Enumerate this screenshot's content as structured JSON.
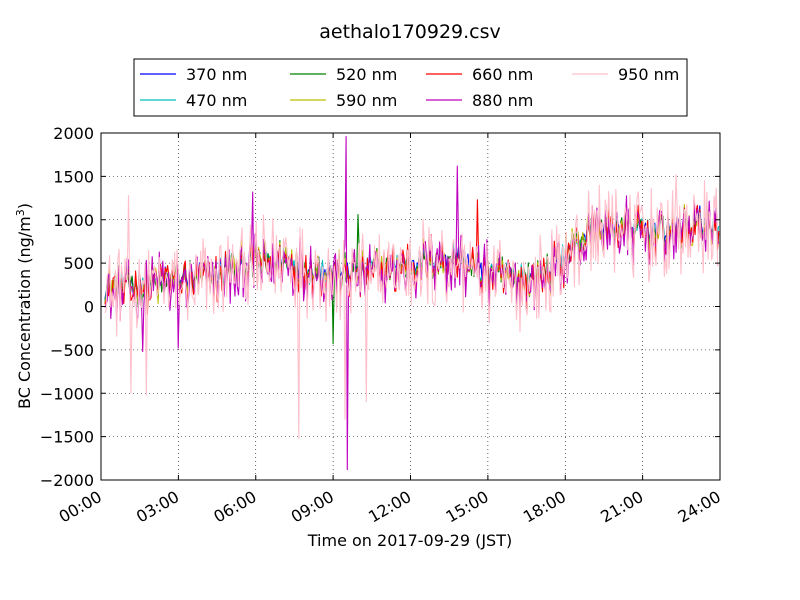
{
  "chart_data": {
    "type": "line",
    "title": "aethalo170929.csv",
    "xlabel": "Time on 2017-09-29 (JST)",
    "ylabel_main": "BC Concentration (ng/m",
    "ylabel_sup": "3",
    "ylabel_tail": ")",
    "xlim_hours": [
      0,
      24
    ],
    "ylim": [
      -2000,
      2000
    ],
    "x_ticks": [
      {
        "hour": 0,
        "label": "00:00"
      },
      {
        "hour": 3,
        "label": "03:00"
      },
      {
        "hour": 6,
        "label": "06:00"
      },
      {
        "hour": 9,
        "label": "09:00"
      },
      {
        "hour": 12,
        "label": "12:00"
      },
      {
        "hour": 15,
        "label": "15:00"
      },
      {
        "hour": 18,
        "label": "18:00"
      },
      {
        "hour": 21,
        "label": "21:00"
      },
      {
        "hour": 24,
        "label": "24:00"
      }
    ],
    "y_ticks": [
      {
        "value": 2000,
        "label": "2000"
      },
      {
        "value": 1500,
        "label": "1500"
      },
      {
        "value": 1000,
        "label": "1000"
      },
      {
        "value": 500,
        "label": "500"
      },
      {
        "value": 0,
        "label": "0"
      },
      {
        "value": -500,
        "label": "−500"
      },
      {
        "value": -1000,
        "label": "−1000"
      },
      {
        "value": -1500,
        "label": "−1500"
      },
      {
        "value": -2000,
        "label": "−2000"
      }
    ],
    "grid": true,
    "legend_position": "top",
    "series": [
      {
        "name": "370 nm",
        "color": "#0000ff",
        "x": [
          0,
          1,
          2,
          3,
          4,
          5,
          6,
          7,
          8,
          9,
          10,
          11,
          12,
          13,
          14,
          15,
          16,
          17,
          18,
          19,
          20,
          21,
          22,
          23,
          24
        ],
        "y": [
          200,
          250,
          300,
          320,
          330,
          450,
          520,
          560,
          480,
          380,
          420,
          450,
          520,
          560,
          540,
          400,
          330,
          350,
          600,
          900,
          950,
          900,
          880,
          950,
          960
        ]
      },
      {
        "name": "470 nm",
        "color": "#00c0bf",
        "x": [
          0,
          1,
          2,
          3,
          4,
          5,
          6,
          7,
          8,
          9,
          10,
          11,
          12,
          13,
          14,
          15,
          16,
          17,
          18,
          19,
          20,
          21,
          22,
          23,
          24
        ],
        "y": [
          190,
          240,
          290,
          310,
          320,
          440,
          510,
          550,
          470,
          370,
          410,
          440,
          510,
          550,
          530,
          420,
          320,
          340,
          590,
          880,
          930,
          880,
          860,
          930,
          940
        ]
      },
      {
        "name": "520 nm",
        "color": "#008000",
        "x": [
          0,
          1,
          2,
          3,
          4,
          5,
          6,
          7,
          8,
          9,
          10,
          11,
          12,
          13,
          14,
          15,
          16,
          17,
          18,
          19,
          20,
          21,
          22,
          23,
          24
        ],
        "y": [
          180,
          230,
          280,
          300,
          310,
          430,
          500,
          540,
          460,
          360,
          400,
          430,
          500,
          540,
          520,
          390,
          310,
          330,
          580,
          870,
          920,
          870,
          850,
          920,
          930
        ]
      },
      {
        "name": "590 nm",
        "color": "#bfbf00",
        "x": [
          0,
          1,
          2,
          3,
          4,
          5,
          6,
          7,
          8,
          9,
          10,
          11,
          12,
          13,
          14,
          15,
          16,
          17,
          18,
          19,
          20,
          21,
          22,
          23,
          24
        ],
        "y": [
          170,
          220,
          270,
          290,
          300,
          420,
          490,
          530,
          450,
          350,
          390,
          420,
          490,
          530,
          510,
          380,
          300,
          320,
          570,
          860,
          910,
          860,
          840,
          910,
          920
        ]
      },
      {
        "name": "660 nm",
        "color": "#ff0000",
        "x": [
          0,
          1,
          2,
          3,
          4,
          5,
          6,
          7,
          8,
          9,
          10,
          11,
          12,
          13,
          14,
          15,
          16,
          17,
          18,
          19,
          20,
          21,
          22,
          23,
          24
        ],
        "y": [
          160,
          210,
          260,
          280,
          290,
          410,
          480,
          520,
          440,
          340,
          380,
          410,
          480,
          520,
          500,
          370,
          290,
          310,
          560,
          850,
          900,
          850,
          830,
          900,
          910
        ]
      },
      {
        "name": "880 nm",
        "color": "#bf00bf",
        "x": [
          0,
          1,
          2,
          3,
          4,
          5,
          6,
          7,
          8,
          9,
          10,
          11,
          12,
          13,
          14,
          15,
          16,
          17,
          18,
          19,
          20,
          21,
          22,
          23,
          24
        ],
        "y": [
          150,
          200,
          250,
          270,
          280,
          400,
          470,
          510,
          430,
          330,
          370,
          400,
          470,
          510,
          490,
          360,
          280,
          300,
          550,
          840,
          890,
          840,
          820,
          890,
          900
        ]
      },
      {
        "name": "950 nm",
        "color": "#ffc0cb",
        "x": [
          0,
          1,
          2,
          3,
          4,
          5,
          6,
          7,
          8,
          9,
          10,
          11,
          12,
          13,
          14,
          15,
          16,
          17,
          18,
          19,
          20,
          21,
          22,
          23,
          24
        ],
        "y": [
          140,
          190,
          240,
          260,
          270,
          390,
          460,
          500,
          420,
          320,
          360,
          390,
          460,
          500,
          480,
          350,
          270,
          290,
          540,
          830,
          880,
          830,
          810,
          880,
          890
        ]
      }
    ],
    "noise_amplitude": [
      160,
      180,
      200,
      220,
      240,
      300,
      420
    ],
    "spikes": {
      "880 nm": [
        {
          "hour": 9.5,
          "value": 1960
        },
        {
          "hour": 9.55,
          "value": -1880
        },
        {
          "hour": 5.9,
          "value": 1320
        },
        {
          "hour": 13.8,
          "value": 1620
        },
        {
          "hour": 3.0,
          "value": -480
        },
        {
          "hour": 1.6,
          "value": -520
        }
      ],
      "950 nm": [
        {
          "hour": 1.05,
          "value": 1280
        },
        {
          "hour": 1.15,
          "value": -1000
        },
        {
          "hour": 1.75,
          "value": -1020
        },
        {
          "hour": 7.65,
          "value": -1520
        },
        {
          "hour": 9.45,
          "value": -1300
        },
        {
          "hour": 19.95,
          "value": 1350
        },
        {
          "hour": 22.3,
          "value": 1520
        },
        {
          "hour": 23.4,
          "value": 1450
        },
        {
          "hour": 10.3,
          "value": -1100
        }
      ],
      "370 nm": [
        {
          "hour": 23.2,
          "value": 1160
        }
      ],
      "660 nm": [
        {
          "hour": 14.6,
          "value": 1230
        }
      ],
      "520 nm": [
        {
          "hour": 9.0,
          "value": -430
        },
        {
          "hour": 9.95,
          "value": 1060
        }
      ]
    }
  }
}
